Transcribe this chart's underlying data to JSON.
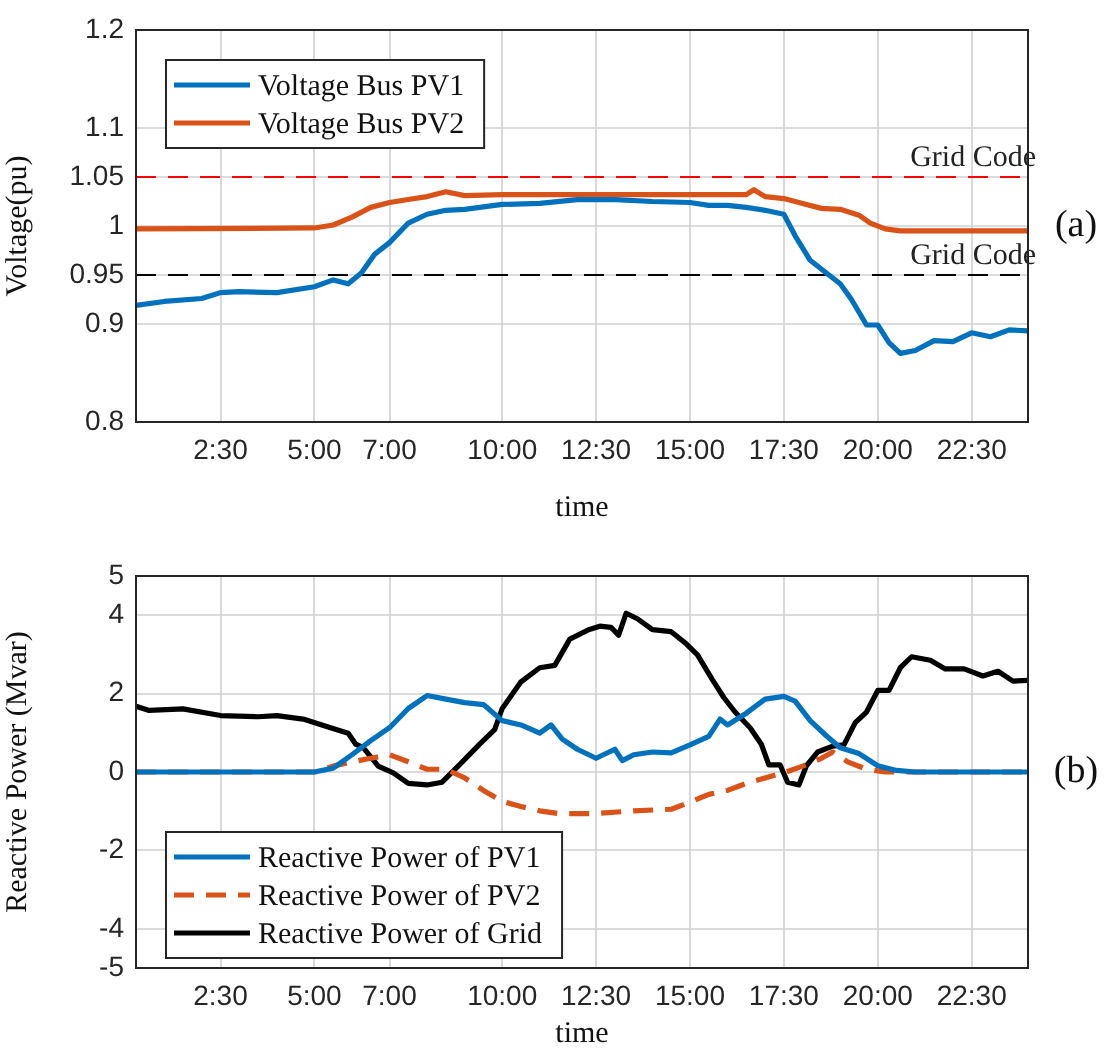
{
  "chart_data": [
    {
      "type": "line",
      "xlabel": "time",
      "ylabel": "Voltage(pu)",
      "xlim": [
        0.25,
        24
      ],
      "xticks": [
        {
          "value": 2.5,
          "label": "2:30"
        },
        {
          "value": 5,
          "label": "5:00"
        },
        {
          "value": 7,
          "label": "7:00"
        },
        {
          "value": 10,
          "label": "10:00"
        },
        {
          "value": 12.5,
          "label": "12:30"
        },
        {
          "value": 15,
          "label": "15:00"
        },
        {
          "value": 17.5,
          "label": "17:30"
        },
        {
          "value": 20,
          "label": "20:00"
        },
        {
          "value": 22.5,
          "label": "22:30"
        }
      ],
      "ylim": [
        0.8,
        1.2
      ],
      "yticks": [
        0.8,
        0.9,
        0.95,
        1,
        1.05,
        1.1,
        1.2
      ],
      "grid": true,
      "legend": "top left",
      "series": [
        {
          "name": "Voltage Bus PV1",
          "color": "#0072bd",
          "x": [
            0.25,
            1,
            2,
            2.5,
            3,
            4,
            5,
            5.5,
            5.9,
            6.25,
            6.6,
            7,
            7.5,
            8,
            8.5,
            9,
            10,
            11,
            12,
            13,
            14,
            15,
            15.5,
            16,
            16.5,
            17,
            17.5,
            17.8,
            18.2,
            18.7,
            19,
            19.3,
            19.7,
            20,
            20.3,
            20.6,
            21,
            21.5,
            22,
            22.5,
            23,
            23.5,
            24
          ],
          "values": [
            0.919,
            0.923,
            0.926,
            0.932,
            0.933,
            0.932,
            0.938,
            0.945,
            0.941,
            0.952,
            0.971,
            0.983,
            1.003,
            1.012,
            1.016,
            1.017,
            1.022,
            1.023,
            1.027,
            1.027,
            1.025,
            1.024,
            1.021,
            1.021,
            1.019,
            1.016,
            1.012,
            0.99,
            0.965,
            0.95,
            0.941,
            0.925,
            0.899,
            0.899,
            0.881,
            0.87,
            0.873,
            0.883,
            0.882,
            0.891,
            0.887,
            0.894,
            0.893
          ]
        },
        {
          "name": "Voltage Bus PV2",
          "color": "#d95319",
          "x": [
            0.25,
            5,
            5.5,
            6,
            6.5,
            7,
            7.5,
            8,
            8.5,
            9,
            10,
            12,
            14,
            16.5,
            16.7,
            17,
            17.5,
            18,
            18.5,
            19,
            19.5,
            19.8,
            20.2,
            20.6,
            24
          ],
          "values": [
            0.997,
            0.998,
            1.001,
            1.009,
            1.019,
            1.024,
            1.027,
            1.03,
            1.035,
            1.031,
            1.032,
            1.032,
            1.032,
            1.032,
            1.037,
            1.03,
            1.028,
            1.023,
            1.018,
            1.017,
            1.011,
            1.003,
            0.997,
            0.995,
            0.995
          ]
        }
      ],
      "ref_lines": [
        {
          "axis": "y",
          "value": 1.05,
          "label": "Grid Code",
          "color": "#ff0000",
          "line_style": "dashed"
        },
        {
          "axis": "y",
          "value": 0.95,
          "label": "Grid Code",
          "color": "#000000",
          "line_style": "dashed"
        }
      ],
      "annotations": [
        "(a)"
      ]
    },
    {
      "type": "line",
      "xlabel": "time",
      "ylabel": "Reactive Power (Mvar)",
      "xlim": [
        0.25,
        24
      ],
      "xticks": [
        {
          "value": 2.5,
          "label": "2:30"
        },
        {
          "value": 5,
          "label": "5:00"
        },
        {
          "value": 7,
          "label": "7:00"
        },
        {
          "value": 10,
          "label": "10:00"
        },
        {
          "value": 12.5,
          "label": "12:30"
        },
        {
          "value": 15,
          "label": "15:00"
        },
        {
          "value": 17.5,
          "label": "17:30"
        },
        {
          "value": 20,
          "label": "20:00"
        },
        {
          "value": 22.5,
          "label": "22:30"
        }
      ],
      "ylim": [
        -5,
        5
      ],
      "yticks": [
        -5,
        -4,
        -2,
        0,
        2,
        4,
        5
      ],
      "grid": true,
      "legend": "bottom left",
      "series": [
        {
          "name": "Reactive Power of PV1",
          "color": "#0072bd",
          "line_style": "solid",
          "x": [
            0.25,
            5,
            5.5,
            6,
            6.5,
            7,
            7.5,
            8,
            8.5,
            9,
            9.5,
            10,
            10.5,
            11,
            11.3,
            11.6,
            12,
            12.5,
            13,
            13.2,
            13.5,
            14,
            14.5,
            15,
            15.5,
            15.8,
            16,
            16.5,
            17,
            17.5,
            17.8,
            18.2,
            18.6,
            19,
            19.5,
            20,
            20.5,
            21,
            24
          ],
          "values": [
            0,
            0,
            0.1,
            0.44,
            0.8,
            1.13,
            1.62,
            1.95,
            1.86,
            1.77,
            1.72,
            1.31,
            1.2,
            0.99,
            1.2,
            0.84,
            0.58,
            0.35,
            0.58,
            0.29,
            0.44,
            0.51,
            0.49,
            0.69,
            0.91,
            1.35,
            1.2,
            1.5,
            1.86,
            1.93,
            1.81,
            1.31,
            0.95,
            0.62,
            0.47,
            0.16,
            0.04,
            0,
            0
          ]
        },
        {
          "name": "Reactive Power of PV2",
          "color": "#d95319",
          "line_style": "dashed",
          "x": [
            0.25,
            5,
            5.5,
            6,
            6.5,
            7,
            7.5,
            8,
            8.5,
            9,
            9.5,
            10,
            10.5,
            11,
            11.5,
            12.5,
            13.5,
            14.5,
            15,
            15.5,
            16,
            16.5,
            17,
            17.5,
            18,
            18.5,
            18.8,
            19.2,
            19.7,
            20.2,
            24
          ],
          "values": [
            0,
            0,
            0.15,
            0.26,
            0.35,
            0.44,
            0.26,
            0.07,
            0.07,
            -0.15,
            -0.47,
            -0.75,
            -0.88,
            -0.99,
            -1.06,
            -1.06,
            -0.99,
            -0.95,
            -0.77,
            -0.57,
            -0.47,
            -0.29,
            -0.15,
            -0.02,
            0.15,
            0.35,
            0.51,
            0.26,
            0.07,
            0,
            0
          ]
        },
        {
          "name": "Reactive Power of Grid",
          "color": "#000000",
          "line_style": "solid",
          "x": [
            0.25,
            0.6,
            1.5,
            2.5,
            3.5,
            4,
            4.7,
            5.2,
            5.6,
            5.9,
            6.1,
            6.3,
            6.7,
            7.1,
            7.5,
            8,
            8.4,
            8.9,
            9.4,
            9.8,
            10,
            10.5,
            11,
            11.4,
            11.8,
            12.3,
            12.6,
            12.9,
            13.1,
            13.3,
            13.6,
            14,
            14.5,
            14.9,
            15.2,
            15.6,
            15.9,
            16.2,
            16.6,
            16.9,
            17.1,
            17.4,
            17.6,
            17.9,
            18.1,
            18.4,
            18.8,
            19.1,
            19.4,
            19.7,
            20,
            20.3,
            20.6,
            20.9,
            21.4,
            21.8,
            22.3,
            22.8,
            23.2,
            23.6,
            24
          ],
          "values": [
            1.68,
            1.57,
            1.61,
            1.44,
            1.41,
            1.44,
            1.35,
            1.2,
            1.08,
            0.99,
            0.71,
            0.62,
            0.15,
            -0.02,
            -0.29,
            -0.33,
            -0.26,
            0.22,
            0.71,
            1.08,
            1.62,
            2.3,
            2.66,
            2.72,
            3.39,
            3.63,
            3.72,
            3.69,
            3.49,
            4.05,
            3.91,
            3.63,
            3.58,
            3.27,
            2.99,
            2.35,
            1.9,
            1.53,
            1.13,
            0.71,
            0.18,
            0.18,
            -0.26,
            -0.33,
            0.16,
            0.51,
            0.66,
            0.69,
            1.26,
            1.53,
            2.08,
            2.08,
            2.66,
            2.94,
            2.85,
            2.63,
            2.63,
            2.45,
            2.57,
            2.32,
            2.34
          ]
        }
      ],
      "annotations": [
        "(b)"
      ]
    }
  ]
}
